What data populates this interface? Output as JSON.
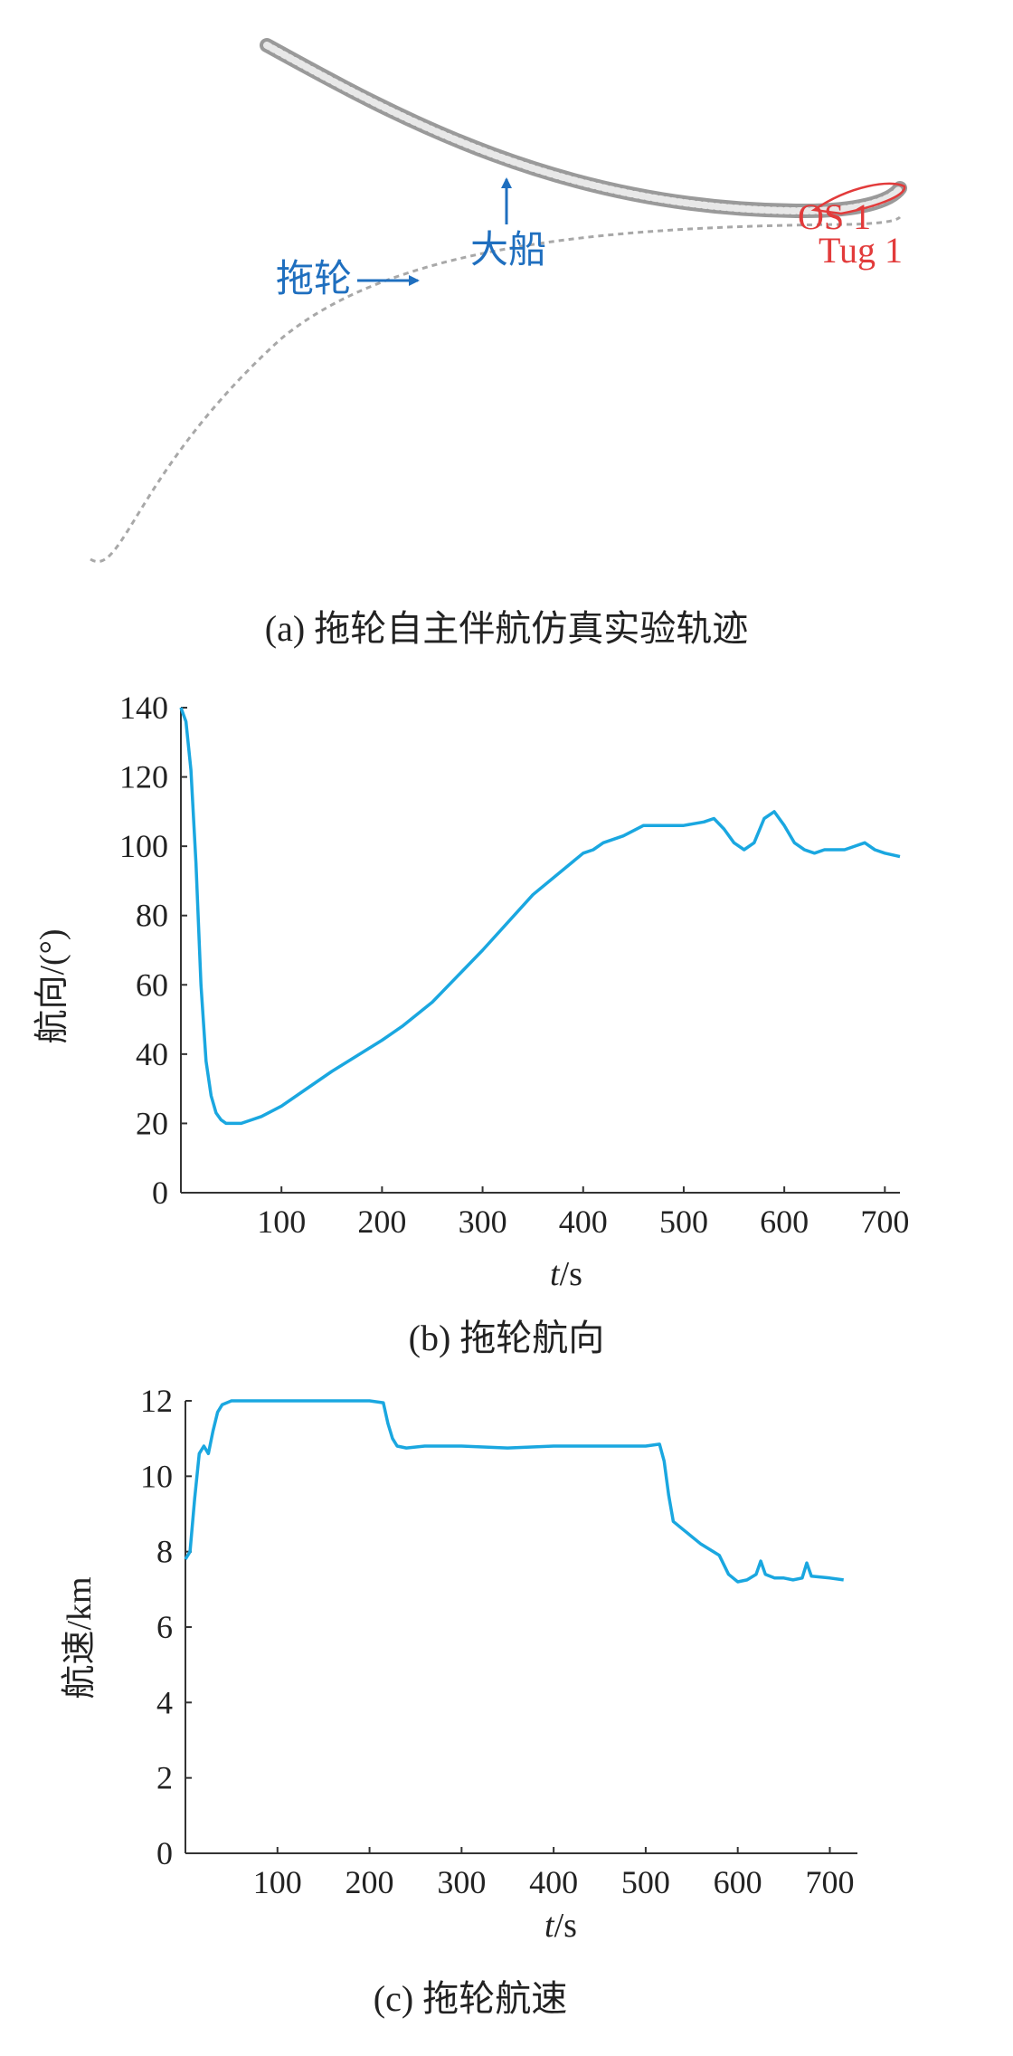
{
  "colors": {
    "line": "#1aa7e0",
    "annotation_blue": "#1f6fbf",
    "annotation_red": "#e23b3b",
    "track": "#9a9a9a"
  },
  "panel_a": {
    "caption": "(a) 拖轮自主伴航仿真实验轨迹",
    "label_tug": "拖轮",
    "label_ship": "大船",
    "label_os": "OS 1",
    "label_tug1": "Tug 1"
  },
  "panel_b": {
    "caption": "(b) 拖轮航向",
    "ylabel": "航向/(°)",
    "xlabel_italic": "t",
    "xlabel_unit": "/s"
  },
  "panel_c": {
    "caption": "(c) 拖轮航速",
    "ylabel": "航速/km",
    "xlabel_italic": "t",
    "xlabel_unit": "/s"
  },
  "chart_data": [
    {
      "type": "line",
      "id": "heading",
      "xlabel": "t/s",
      "ylabel": "航向/(°)",
      "xlim": [
        0,
        715
      ],
      "ylim": [
        0,
        140
      ],
      "xticks": [
        100,
        200,
        300,
        400,
        500,
        600,
        700
      ],
      "yticks": [
        0,
        20,
        40,
        60,
        80,
        100,
        120,
        140
      ],
      "grid": false,
      "x": [
        0,
        5,
        10,
        15,
        20,
        25,
        30,
        35,
        40,
        45,
        50,
        55,
        60,
        70,
        80,
        100,
        120,
        150,
        200,
        220,
        250,
        300,
        350,
        400,
        410,
        420,
        440,
        460,
        480,
        500,
        520,
        530,
        540,
        550,
        560,
        570,
        580,
        590,
        600,
        610,
        620,
        630,
        640,
        660,
        670,
        680,
        690,
        700,
        715
      ],
      "y": [
        140,
        136,
        122,
        95,
        60,
        38,
        28,
        23,
        21,
        20,
        20,
        20,
        20,
        21,
        22,
        25,
        29,
        35,
        44,
        48,
        55,
        70,
        86,
        98,
        99,
        101,
        103,
        106,
        106,
        106,
        107,
        108,
        105,
        101,
        99,
        101,
        108,
        110,
        106,
        101,
        99,
        98,
        99,
        99,
        100,
        101,
        99,
        98,
        97
      ]
    },
    {
      "type": "line",
      "id": "speed",
      "xlabel": "t/s",
      "ylabel": "航速/km",
      "xlim": [
        0,
        730
      ],
      "ylim": [
        0,
        12
      ],
      "xticks": [
        100,
        200,
        300,
        400,
        500,
        600,
        700
      ],
      "yticks": [
        0,
        2,
        4,
        6,
        8,
        10,
        12
      ],
      "grid": false,
      "x": [
        0,
        5,
        10,
        15,
        20,
        25,
        30,
        35,
        40,
        50,
        60,
        100,
        150,
        200,
        215,
        220,
        225,
        230,
        240,
        260,
        300,
        350,
        400,
        450,
        500,
        515,
        520,
        525,
        530,
        540,
        560,
        580,
        590,
        600,
        610,
        620,
        625,
        630,
        640,
        650,
        660,
        670,
        675,
        680,
        700,
        715
      ],
      "y": [
        7.8,
        8.0,
        9.4,
        10.6,
        10.8,
        10.6,
        11.2,
        11.7,
        11.9,
        12.0,
        12.0,
        12.0,
        12.0,
        12.0,
        11.95,
        11.4,
        11.0,
        10.8,
        10.75,
        10.8,
        10.8,
        10.75,
        10.8,
        10.8,
        10.8,
        10.85,
        10.4,
        9.5,
        8.8,
        8.6,
        8.2,
        7.9,
        7.4,
        7.2,
        7.25,
        7.4,
        7.75,
        7.4,
        7.3,
        7.3,
        7.25,
        7.3,
        7.7,
        7.35,
        7.3,
        7.25
      ]
    }
  ]
}
